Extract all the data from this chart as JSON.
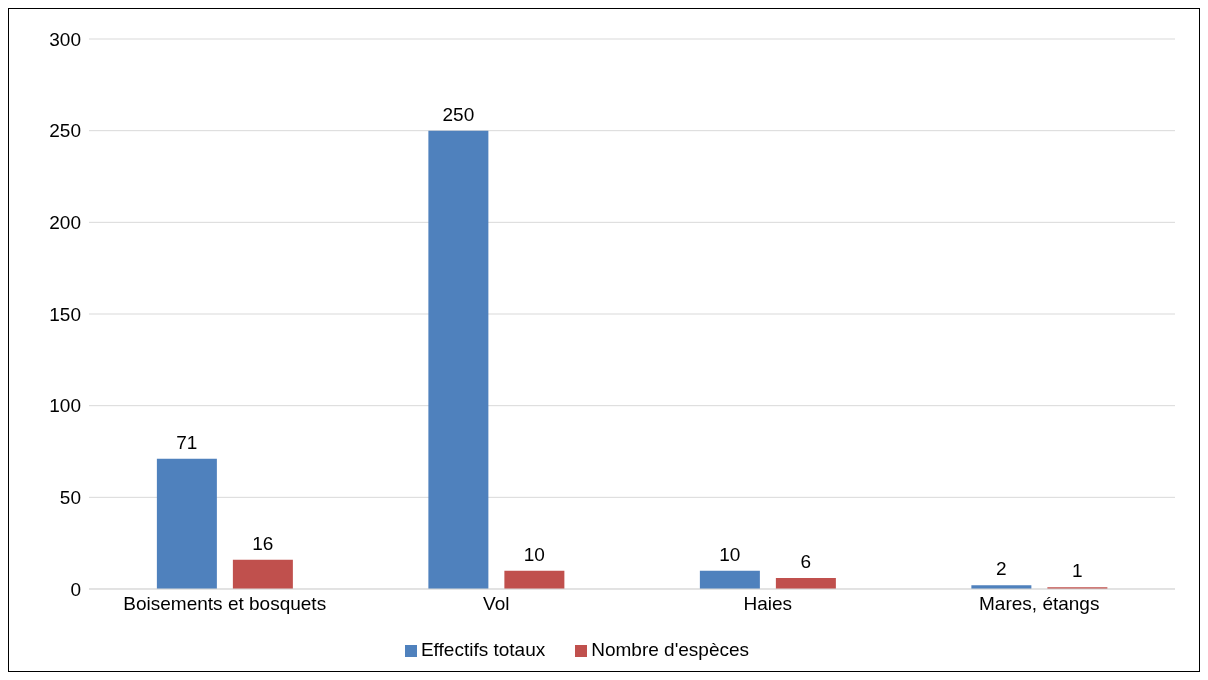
{
  "chart_data": {
    "type": "bar",
    "categories": [
      "Boisements et bosquets",
      "Vol",
      "Haies",
      "Mares, étangs"
    ],
    "series": [
      {
        "name": "Effectifs totaux",
        "color": "#4f81bd",
        "values": [
          71,
          250,
          10,
          2
        ]
      },
      {
        "name": "Nombre d'espèces",
        "color": "#c0504d",
        "values": [
          16,
          10,
          6,
          1
        ]
      }
    ],
    "ylim": [
      0,
      300
    ],
    "yticks": [
      0,
      50,
      100,
      150,
      200,
      250,
      300
    ],
    "grid": "y",
    "legend": "bottom",
    "data_labels": true
  }
}
